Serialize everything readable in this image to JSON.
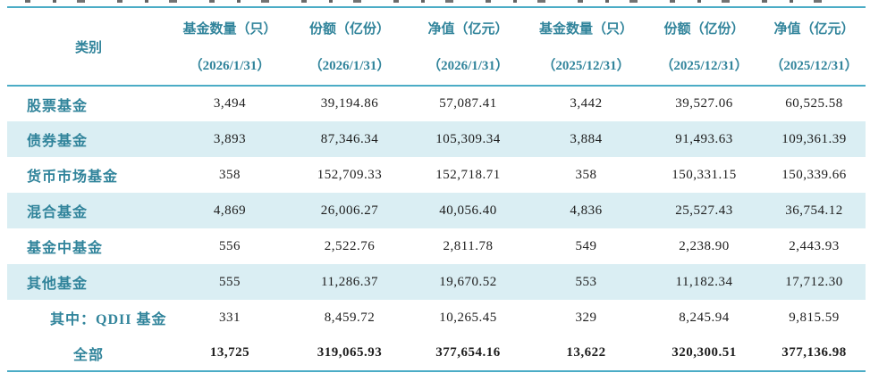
{
  "colors": {
    "border": "#4BACC6",
    "accent_text": "#31849B",
    "row_shading": "#DAEEF3",
    "number_text": "#1D1D1D"
  },
  "table": {
    "category_header": "类别",
    "columns": [
      {
        "label": "基金数量（只）",
        "date": "（2026/1/31）"
      },
      {
        "label": "份额（亿份）",
        "date": "（2026/1/31）"
      },
      {
        "label": "净值（亿元）",
        "date": "（2026/1/31）"
      },
      {
        "label": "基金数量（只）",
        "date": "（2025/12/31）"
      },
      {
        "label": "份额（亿份）",
        "date": "（2025/12/31）"
      },
      {
        "label": "净值（亿元）",
        "date": "（2025/12/31）"
      }
    ],
    "rows": [
      {
        "category": "股票基金",
        "indent": "normal",
        "shaded": false,
        "bold": false,
        "values": [
          "3,494",
          "39,194.86",
          "57,087.41",
          "3,442",
          "39,527.06",
          "60,525.58"
        ]
      },
      {
        "category": "债券基金",
        "indent": "normal",
        "shaded": true,
        "bold": false,
        "values": [
          "3,893",
          "87,346.34",
          "105,309.34",
          "3,884",
          "91,493.63",
          "109,361.39"
        ]
      },
      {
        "category": "货币市场基金",
        "indent": "normal",
        "shaded": false,
        "bold": false,
        "values": [
          "358",
          "152,709.33",
          "152,718.71",
          "358",
          "150,331.15",
          "150,339.66"
        ]
      },
      {
        "category": "混合基金",
        "indent": "normal",
        "shaded": true,
        "bold": false,
        "values": [
          "4,869",
          "26,006.27",
          "40,056.40",
          "4,836",
          "25,527.43",
          "36,754.12"
        ]
      },
      {
        "category": "基金中基金",
        "indent": "normal",
        "shaded": false,
        "bold": false,
        "values": [
          "556",
          "2,522.76",
          "2,811.78",
          "549",
          "2,238.90",
          "2,443.93"
        ]
      },
      {
        "category": "其他基金",
        "indent": "normal",
        "shaded": true,
        "bold": false,
        "values": [
          "555",
          "11,286.37",
          "19,670.52",
          "553",
          "11,182.34",
          "17,712.30"
        ]
      },
      {
        "category": "其中：QDII 基金",
        "indent": "sub",
        "shaded": false,
        "bold": false,
        "values": [
          "331",
          "8,459.72",
          "10,265.45",
          "329",
          "8,245.94",
          "9,815.59"
        ]
      },
      {
        "category": "全部",
        "indent": "center",
        "shaded": false,
        "bold": true,
        "values": [
          "13,725",
          "319,065.93",
          "377,654.16",
          "13,622",
          "320,300.51",
          "377,136.98"
        ]
      }
    ]
  }
}
